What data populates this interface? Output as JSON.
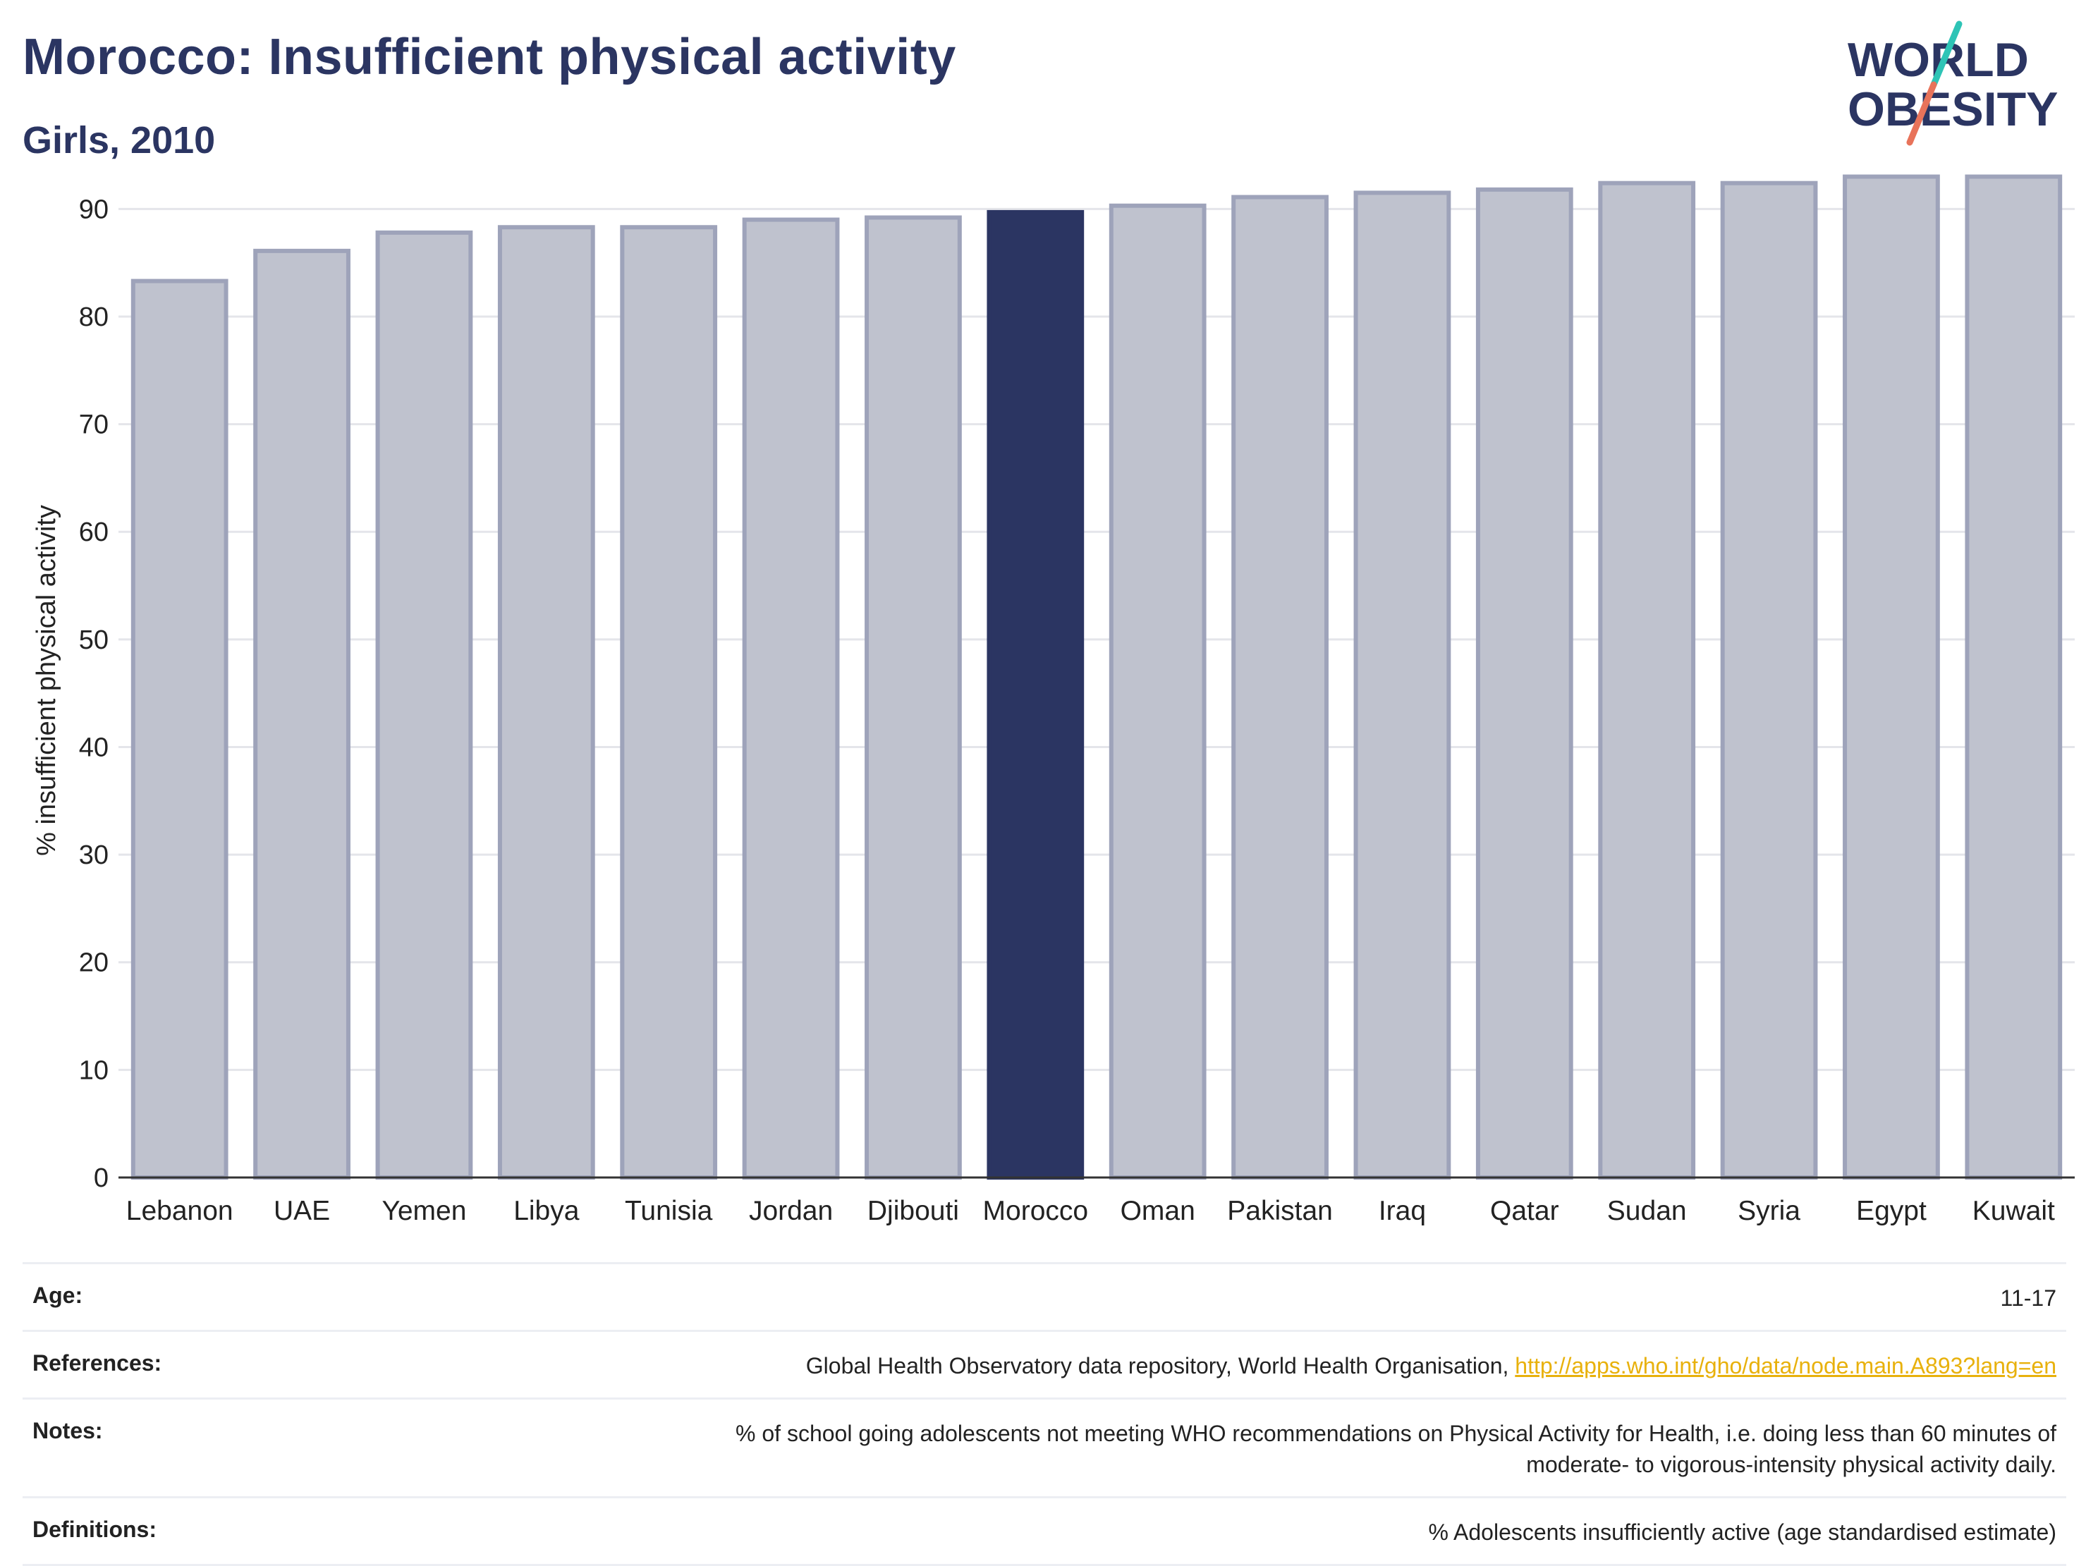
{
  "header": {
    "title": "Morocco: Insufficient physical activity",
    "subtitle": "Girls, 2010"
  },
  "logo": {
    "line1": "WORLD",
    "line2": "OBESITY",
    "colors": {
      "text": "#2b3562",
      "slash_top": "#2ec4b6",
      "slash_bottom": "#e8735a"
    }
  },
  "chart_data": {
    "type": "bar",
    "categories": [
      "Lebanon",
      "UAE",
      "Yemen",
      "Libya",
      "Tunisia",
      "Jordan",
      "Djibouti",
      "Morocco",
      "Oman",
      "Pakistan",
      "Iraq",
      "Qatar",
      "Sudan",
      "Syria",
      "Egypt",
      "Kuwait"
    ],
    "values": [
      83.3,
      86.1,
      87.8,
      88.3,
      88.3,
      89.0,
      89.2,
      89.7,
      90.3,
      91.1,
      91.5,
      91.8,
      92.4,
      92.4,
      93.0,
      93.0
    ],
    "highlight": "Morocco",
    "ylabel": "% insufficient physical activity",
    "ylim": [
      0,
      95
    ],
    "yticks": [
      0,
      10,
      20,
      30,
      40,
      50,
      60,
      70,
      80,
      90
    ],
    "grid": true,
    "colors": {
      "bar_fill": "#bfc2ce",
      "bar_stroke": "#9ea3ba",
      "highlight_fill": "#2b3562",
      "grid": "#e4e5ea",
      "axis": "#333333"
    }
  },
  "meta": {
    "age": {
      "label": "Age:",
      "value": "11-17"
    },
    "references": {
      "label": "References:",
      "text": "Global Health Observatory data repository, World Health Organisation, ",
      "link": "http://apps.who.int/gho/data/node.main.A893?lang=en"
    },
    "notes": {
      "label": "Notes:",
      "line1": "% of school going adolescents not meeting WHO recommendations on Physical Activity for Health, i.e. doing less than 60 minutes of",
      "line2": "moderate- to vigorous-intensity physical activity daily."
    },
    "definitions": {
      "label": "Definitions:",
      "value": "% Adolescents insufficiently active (age standardised estimate)"
    }
  }
}
